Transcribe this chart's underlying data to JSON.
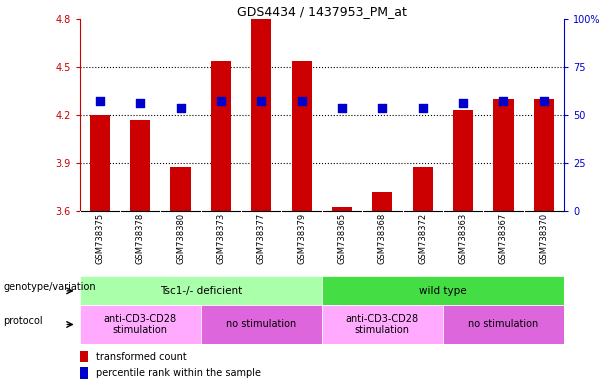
{
  "title": "GDS4434 / 1437953_PM_at",
  "samples": [
    "GSM738375",
    "GSM738378",
    "GSM738380",
    "GSM738373",
    "GSM738377",
    "GSM738379",
    "GSM738365",
    "GSM738368",
    "GSM738372",
    "GSM738363",
    "GSM738367",
    "GSM738370"
  ],
  "red_values": [
    4.2,
    4.17,
    3.875,
    4.54,
    4.8,
    4.54,
    3.625,
    3.72,
    3.875,
    4.23,
    4.3,
    4.3
  ],
  "blue_pct": [
    57.5,
    56.5,
    53.5,
    57.5,
    57.5,
    57.5,
    53.5,
    53.5,
    53.5,
    56.5,
    57.5,
    57.5
  ],
  "ymin": 3.6,
  "ymax": 4.8,
  "yticks": [
    3.6,
    3.9,
    4.2,
    4.5,
    4.8
  ],
  "right_yticks": [
    0,
    25,
    50,
    75,
    100
  ],
  "right_yticklabels": [
    "0",
    "25",
    "50",
    "75",
    "100%"
  ],
  "genotype_groups": [
    {
      "label": "Tsc1-/- deficient",
      "start": 0,
      "end": 6,
      "color": "#AAFFAA"
    },
    {
      "label": "wild type",
      "start": 6,
      "end": 12,
      "color": "#44DD44"
    }
  ],
  "protocol_groups": [
    {
      "label": "anti-CD3-CD28\nstimulation",
      "start": 0,
      "end": 3,
      "color": "#FFAAFF"
    },
    {
      "label": "no stimulation",
      "start": 3,
      "end": 6,
      "color": "#DD66DD"
    },
    {
      "label": "anti-CD3-CD28\nstimulation",
      "start": 6,
      "end": 9,
      "color": "#FFAAFF"
    },
    {
      "label": "no stimulation",
      "start": 9,
      "end": 12,
      "color": "#DD66DD"
    }
  ],
  "bar_color": "#CC0000",
  "dot_color": "#0000CC",
  "bar_width": 0.5,
  "dot_size": 30,
  "left_axis_color": "#CC0000",
  "right_axis_color": "#0000CC",
  "grid_yticks": [
    3.9,
    4.2,
    4.5
  ],
  "label_genotype": "genotype/variation",
  "label_protocol": "protocol",
  "legend_red": "transformed count",
  "legend_blue": "percentile rank within the sample"
}
